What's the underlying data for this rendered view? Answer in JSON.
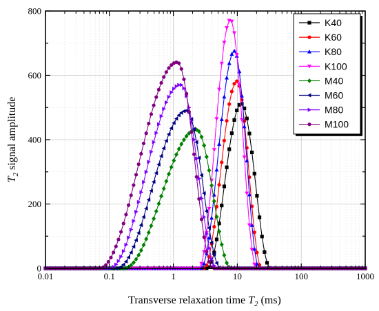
{
  "chart_data": {
    "type": "line",
    "title": "",
    "xlabel": "Transverse relaxation time T2 (ms)",
    "xlabel_parts": {
      "prefix": "Transverse relaxation time ",
      "var": "T",
      "sub": "2",
      "suffix": " (ms)"
    },
    "ylabel": "T2 signal amplitude",
    "ylabel_parts": {
      "var": "T",
      "sub": "2",
      "suffix": " signal amplitude"
    },
    "xscale": "log",
    "xlim": [
      0.01,
      1000
    ],
    "ylim": [
      0,
      800
    ],
    "x_tick_labels": [
      "0.01",
      "0.1",
      "1",
      "10",
      "100",
      "1000"
    ],
    "y_tick_labels": [
      "0",
      "200",
      "400",
      "600",
      "800"
    ],
    "grid": true,
    "legend_position": "top-right",
    "series": [
      {
        "name": "K40",
        "color": "#000000",
        "marker": "square",
        "peak_x": 11.5,
        "peak_y": 512,
        "left_zero_x": 3.4,
        "right_zero_x": 33
      },
      {
        "name": "K60",
        "color": "#ff0000",
        "marker": "circle",
        "peak_x": 9.8,
        "peak_y": 582,
        "left_zero_x": 3.0,
        "right_zero_x": 24
      },
      {
        "name": "K80",
        "color": "#0000ff",
        "marker": "triangle-up",
        "peak_x": 9.0,
        "peak_y": 676,
        "left_zero_x": 2.7,
        "right_zero_x": 22
      },
      {
        "name": "K100",
        "color": "#ff00ff",
        "marker": "triangle-down",
        "peak_x": 7.8,
        "peak_y": 773,
        "left_zero_x": 2.5,
        "right_zero_x": 20
      },
      {
        "name": "M40",
        "color": "#008000",
        "marker": "diamond",
        "peak_x": 2.3,
        "peak_y": 431,
        "left_zero_x": 0.17,
        "right_zero_x": 8.0
      },
      {
        "name": "M60",
        "color": "#000080",
        "marker": "triangle-left",
        "peak_x": 1.6,
        "peak_y": 490,
        "left_zero_x": 0.13,
        "right_zero_x": 5.5
      },
      {
        "name": "M80",
        "color": "#8000ff",
        "marker": "triangle-right",
        "peak_x": 1.3,
        "peak_y": 571,
        "left_zero_x": 0.1,
        "right_zero_x": 4.8
      },
      {
        "name": "M100",
        "color": "#800080",
        "marker": "circle",
        "peak_x": 1.15,
        "peak_y": 641,
        "left_zero_x": 0.07,
        "right_zero_x": 4.2
      }
    ]
  }
}
